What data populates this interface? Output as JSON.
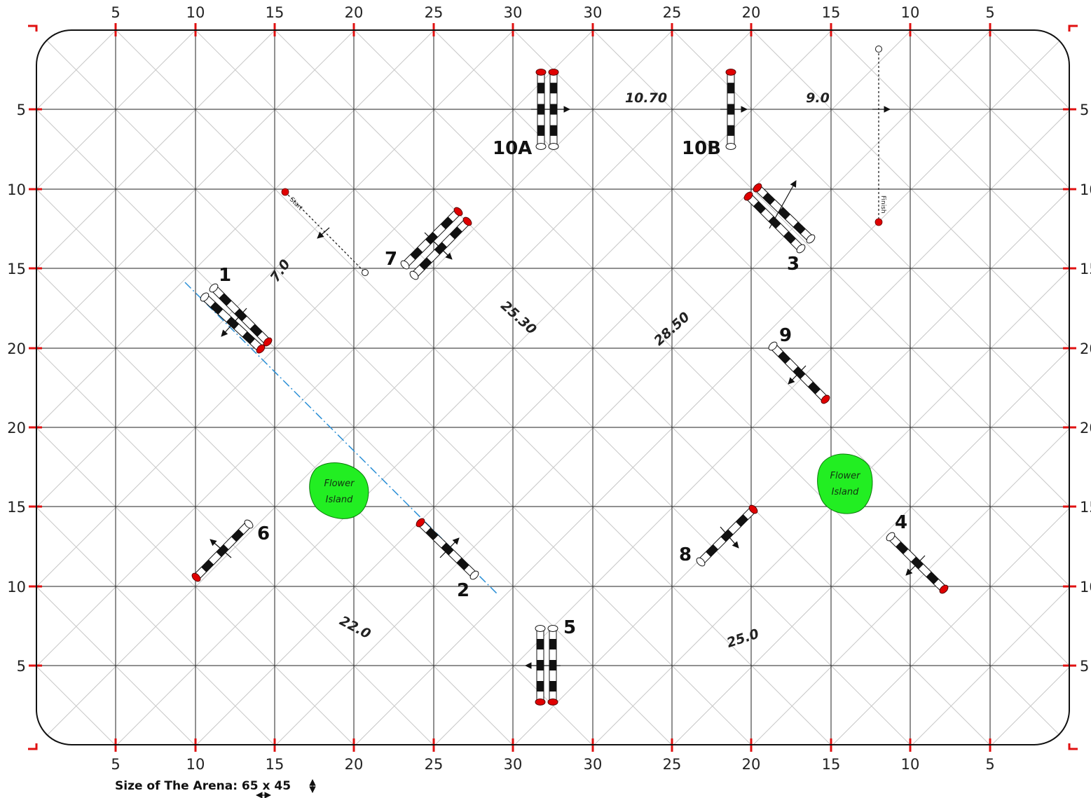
{
  "arena": {
    "top_scale": [
      "5",
      "10",
      "15",
      "20",
      "25",
      "30",
      "30",
      "25",
      "20",
      "15",
      "10",
      "5"
    ],
    "bottom_scale": [
      "5",
      "10",
      "15",
      "20",
      "25",
      "30",
      "30",
      "25",
      "20",
      "15",
      "10",
      "5"
    ],
    "left_scale": [
      "5",
      "10",
      "15",
      "20",
      "20",
      "15",
      "10",
      "5"
    ],
    "right_scale": [
      "5",
      "10",
      "15",
      "20",
      "20",
      "15",
      "10",
      "5"
    ],
    "size_label": "Size of The Arena:",
    "size_width": "65",
    "size_x": "x",
    "size_height": "45"
  },
  "colors": {
    "grid": "#222222",
    "diag": "#c8c8c8",
    "border": "#111111",
    "corner_mark": "#e01010",
    "pole_red": "#e00000",
    "line_blue": "#2a8fd6",
    "island": "#22ee22"
  },
  "jumps": [
    {
      "id": "j1",
      "label": "1"
    },
    {
      "id": "j2",
      "label": "2"
    },
    {
      "id": "j3",
      "label": "3"
    },
    {
      "id": "j4",
      "label": "4"
    },
    {
      "id": "j5",
      "label": "5"
    },
    {
      "id": "j6",
      "label": "6"
    },
    {
      "id": "j7",
      "label": "7"
    },
    {
      "id": "j8",
      "label": "8"
    },
    {
      "id": "j9",
      "label": "9"
    },
    {
      "id": "j10a",
      "label": "10A"
    },
    {
      "id": "j10b",
      "label": "10B"
    }
  ],
  "distances": [
    "10.70",
    "9.0",
    "7.0",
    "25.30",
    "28.50",
    "22.0",
    "25.0"
  ],
  "start_label": "Start",
  "finish_label": "Finish",
  "islands": [
    {
      "line1": "Flower",
      "line2": "Island"
    },
    {
      "line1": "Flower",
      "line2": "Island"
    }
  ]
}
